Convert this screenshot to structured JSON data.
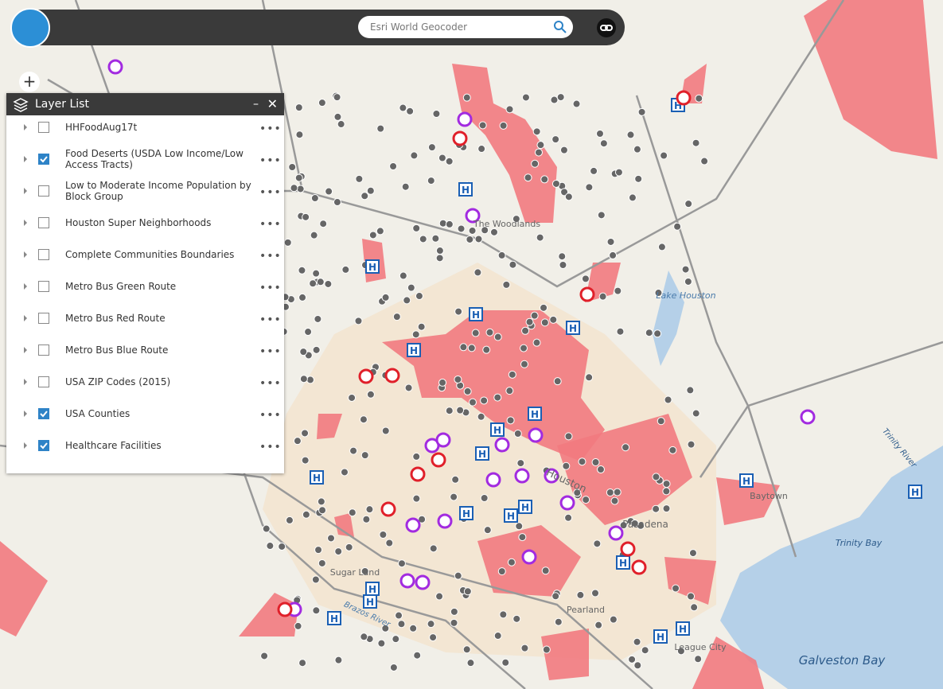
{
  "header": {
    "search_placeholder": "Esri World Geocoder"
  },
  "layer_list": {
    "title": "Layer List",
    "layers": [
      {
        "name": "HHFoodAug17t",
        "checked": false
      },
      {
        "name": "Food Deserts (USDA Low Income/Low Access Tracts)",
        "checked": true
      },
      {
        "name": "Low to Moderate Income Population by Block Group",
        "checked": false
      },
      {
        "name": "Houston Super Neighborhoods",
        "checked": false
      },
      {
        "name": "Complete Communities Boundaries",
        "checked": false
      },
      {
        "name": "Metro Bus Green Route",
        "checked": false
      },
      {
        "name": "Metro Bus Red Route",
        "checked": false
      },
      {
        "name": "Metro Bus Blue Route",
        "checked": false
      },
      {
        "name": "USA ZIP Codes (2015)",
        "checked": false
      },
      {
        "name": "USA Counties",
        "checked": true
      },
      {
        "name": "Healthcare Facilities",
        "checked": true
      }
    ]
  },
  "map": {
    "labels": [
      "The Woodlands",
      "Lake Houston",
      "Sugar Land",
      "Pasadena",
      "Baytown",
      "Pearland",
      "League City",
      "Trinity Bay",
      "Galveston Bay",
      "Trinity River",
      "Brazos River",
      "Houston"
    ]
  }
}
